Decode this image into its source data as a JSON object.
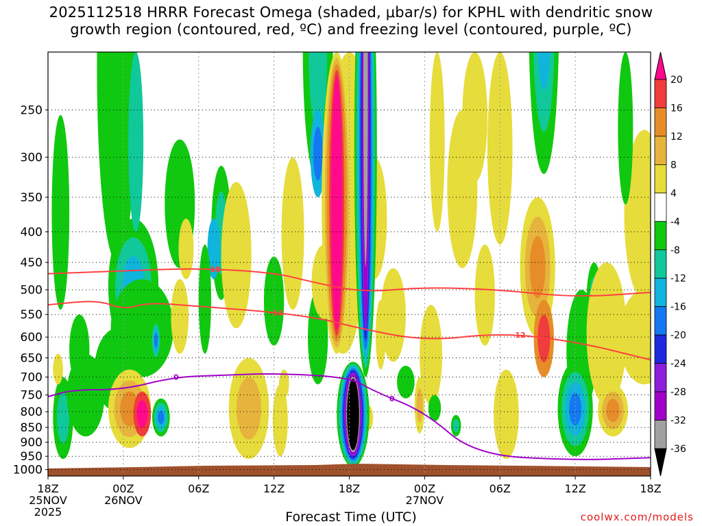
{
  "title": {
    "line1": "2025112518 HRRR Forecast Omega (shaded, μbar/s) for KPHL with dendritic snow",
    "line2": "growth region (contoured, red, ºC) and freezing level (contoured, purple, ºC)"
  },
  "xlabel": "Forecast Time (UTC)",
  "credit": "coolwx.com/models",
  "chart_data": {
    "type": "heatmap",
    "title": "2025112518 HRRR Forecast Omega (shaded, μbar/s) for KPHL with dendritic snow growth region (contoured, red, ºC) and freezing level (contoured, purple, ºC)",
    "xlabel": "Forecast Time (UTC)",
    "ylabel": "",
    "x_hours_since_init": [
      0,
      6,
      12,
      18,
      24,
      30,
      36,
      42,
      48
    ],
    "x_tick_labels": [
      [
        "18Z",
        "25NOV",
        "2025"
      ],
      [
        "00Z",
        "26NOV"
      ],
      [
        "06Z"
      ],
      [
        "12Z"
      ],
      [
        "18Z"
      ],
      [
        "00Z",
        "27NOV"
      ],
      [
        "06Z"
      ],
      [
        "12Z"
      ],
      [
        "18Z"
      ]
    ],
    "y_pressure_levels": [
      250,
      300,
      350,
      400,
      450,
      500,
      550,
      600,
      650,
      700,
      750,
      800,
      850,
      900,
      950,
      1000
    ],
    "ylim": [
      1025,
      200
    ],
    "y_scale": "log-pressure",
    "grid": true,
    "colorbar": {
      "labels": [
        20,
        16,
        12,
        8,
        4,
        -4,
        -8,
        -12,
        -16,
        -20,
        -24,
        -28,
        -32,
        -36
      ],
      "colors": [
        "#ff0a8c",
        "#f03c3c",
        "#e68c28",
        "#e6b43c",
        "#e6dc3c",
        "#ffffff",
        "#10c810",
        "#10c89a",
        "#10b4dc",
        "#1478f0",
        "#1e28dc",
        "#8c1edc",
        "#a000c8",
        "#a0a0a0",
        "#000000"
      ]
    },
    "contours": [
      {
        "label": "-18",
        "color": "#ff4040",
        "points": [
          [
            0,
            470
          ],
          [
            6,
            465
          ],
          [
            12,
            460
          ],
          [
            18,
            468
          ],
          [
            21,
            485
          ],
          [
            25,
            505
          ],
          [
            30,
            495
          ],
          [
            36,
            500
          ],
          [
            42,
            515
          ],
          [
            48,
            505
          ]
        ]
      },
      {
        "label": "-12",
        "color": "#ff4040",
        "points": [
          [
            0,
            530
          ],
          [
            4,
            520
          ],
          [
            6,
            540
          ],
          [
            8,
            525
          ],
          [
            12,
            533
          ],
          [
            18,
            545
          ],
          [
            22,
            560
          ],
          [
            24,
            575
          ],
          [
            30,
            610
          ],
          [
            36,
            590
          ],
          [
            42,
            610
          ],
          [
            48,
            655
          ]
        ]
      },
      {
        "label": "0",
        "color": "#a000c8",
        "points": [
          [
            0,
            755
          ],
          [
            2,
            735
          ],
          [
            6,
            735
          ],
          [
            10,
            700
          ],
          [
            14,
            695
          ],
          [
            18,
            690
          ],
          [
            24,
            700
          ],
          [
            26,
            740
          ],
          [
            30,
            800
          ],
          [
            34,
            945
          ],
          [
            42,
            965
          ],
          [
            48,
            955
          ]
        ]
      }
    ],
    "omega_features_ubar_per_s": [
      {
        "name": "max ascent core",
        "time_h": 24.5,
        "pressure": 800,
        "value": -36
      },
      {
        "name": "strongest subsidence",
        "time_h": 22.5,
        "pressure": 480,
        "value": 20
      },
      {
        "name": "lower-level subsidence",
        "time_h": 6.0,
        "pressure": 800,
        "value": 20
      }
    ]
  }
}
